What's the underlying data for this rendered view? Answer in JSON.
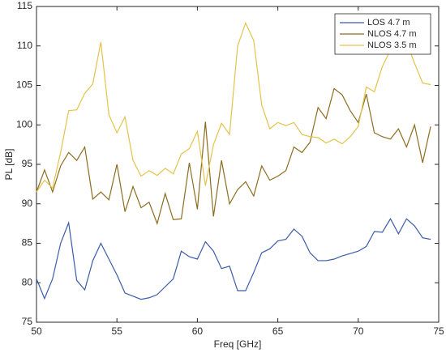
{
  "chart_data": {
    "type": "line",
    "xlabel": "Freq [GHz]",
    "ylabel": "PL [dB]",
    "x": [
      50,
      50.5,
      51,
      51.5,
      52,
      52.5,
      53,
      53.5,
      54,
      54.5,
      55,
      55.5,
      56,
      56.5,
      57,
      57.5,
      58,
      58.5,
      59,
      59.5,
      60,
      60.5,
      61,
      61.5,
      62,
      62.5,
      63,
      63.5,
      64,
      64.5,
      65,
      65.5,
      66,
      66.5,
      67,
      67.5,
      68,
      68.5,
      69,
      69.5,
      70,
      70.5,
      71,
      71.5,
      72,
      72.5,
      73,
      73.5,
      74,
      74.5
    ],
    "series": [
      {
        "name": "LOS 4.7 m",
        "color": "#3b5ba8",
        "values": [
          80.5,
          78,
          80.5,
          85,
          87.6,
          80.3,
          79.1,
          82.8,
          85,
          83,
          81,
          78.7,
          78.3,
          77.9,
          78.1,
          78.5,
          79.5,
          80.5,
          84,
          83.3,
          83,
          85.2,
          84,
          81.8,
          82.1,
          79,
          79,
          81.3,
          83.8,
          84.3,
          85.3,
          85.5,
          86.8,
          85.9,
          83.8,
          82.8,
          82.8,
          83,
          83.4,
          83.7,
          84,
          84.6,
          86.5,
          86.4,
          88.1,
          86.2,
          88.1,
          87.2,
          85.7,
          85.5
        ]
      },
      {
        "name": "NLOS 4.7 m",
        "color": "#8c6d1f",
        "values": [
          91.5,
          94.3,
          91.5,
          94.8,
          96.5,
          95.5,
          97.2,
          90.6,
          91.5,
          90.5,
          95,
          89,
          92.2,
          89.5,
          90.2,
          87.5,
          91.3,
          88,
          88.1,
          95.2,
          89.3,
          100.4,
          88.4,
          95.5,
          90,
          91.8,
          92.8,
          91,
          94.8,
          93,
          93.5,
          94.2,
          97.2,
          96.5,
          97.8,
          102.2,
          100.8,
          104.6,
          103.8,
          101.8,
          100.3,
          103.9,
          99,
          98.5,
          98.2,
          99.5,
          97.2,
          100,
          95.2,
          99.8
        ]
      },
      {
        "name": "NLOS 3.5 m",
        "color": "#e3c34a",
        "values": [
          91.5,
          93,
          92,
          96.5,
          101.8,
          101.9,
          104,
          105.2,
          110.5,
          101.3,
          99,
          101,
          95.5,
          93.5,
          94.2,
          93.6,
          94.5,
          93.8,
          96.3,
          97,
          99.2,
          92.3,
          97.5,
          100.2,
          98.8,
          110,
          112.9,
          110.7,
          102.5,
          99.5,
          100.3,
          99.9,
          100.3,
          98.8,
          98.5,
          98.4,
          97.7,
          98.2,
          97.6,
          98.5,
          99.8,
          104.8,
          104.2,
          107.4,
          109.5,
          111,
          110.5,
          107.8,
          105.3,
          105.1
        ]
      }
    ],
    "xlim": [
      50,
      75
    ],
    "xticks": [
      50,
      55,
      60,
      65,
      70,
      75
    ],
    "ylim": [
      75,
      115
    ],
    "yticks": [
      75,
      80,
      85,
      90,
      95,
      100,
      105,
      110,
      115
    ],
    "grid": false,
    "legend": "northeast"
  }
}
